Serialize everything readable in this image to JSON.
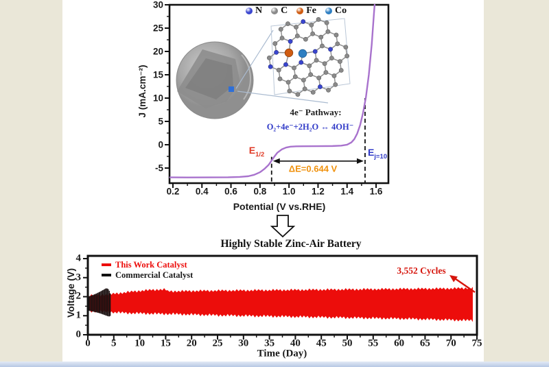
{
  "page": {
    "background": "#eae7d8",
    "panel": "#ffffff",
    "footer_top": "#e3eaf5",
    "footer_bottom": "#b7c8e4",
    "frame_color": "#111111"
  },
  "top_chart": {
    "type": "line",
    "xlabel": "Potential (V vs.RHE)",
    "ylabel": "J (mA.cm⁻²)",
    "xlim": [
      0.1765,
      1.685
    ],
    "ylim": [
      -8.24,
      30
    ],
    "x_ticks": {
      "values": [
        0.2,
        0.4,
        0.6,
        0.8,
        1.0,
        1.2,
        1.4,
        1.6
      ],
      "labels": [
        "0.2",
        "0.4",
        "0.6",
        "0.8",
        "1.0",
        "1.2",
        "1.4",
        "1.6"
      ]
    },
    "y_ticks": {
      "values": [
        30,
        25,
        20,
        15,
        10,
        5,
        0,
        -5
      ],
      "labels": [
        "30",
        "25",
        "20",
        "15",
        "10",
        "5",
        "0",
        "-5"
      ]
    },
    "curve_color": "#a872cd",
    "curve": [
      [
        0.18,
        -7.0
      ],
      [
        0.3,
        -7.02
      ],
      [
        0.45,
        -7.0
      ],
      [
        0.58,
        -6.98
      ],
      [
        0.66,
        -6.9
      ],
      [
        0.72,
        -6.75
      ],
      [
        0.76,
        -6.45
      ],
      [
        0.8,
        -5.9
      ],
      [
        0.83,
        -5.2
      ],
      [
        0.86,
        -4.3
      ],
      [
        0.88,
        -3.4
      ],
      [
        0.9,
        -2.5
      ],
      [
        0.92,
        -1.7
      ],
      [
        0.95,
        -1.0
      ],
      [
        0.98,
        -0.6
      ],
      [
        1.01,
        -0.42
      ],
      [
        1.05,
        -0.35
      ],
      [
        1.1,
        -0.32
      ],
      [
        1.2,
        -0.3
      ],
      [
        1.3,
        -0.28
      ],
      [
        1.36,
        -0.2
      ],
      [
        1.4,
        0.0
      ],
      [
        1.43,
        0.5
      ],
      [
        1.45,
        1.2
      ],
      [
        1.47,
        2.4
      ],
      [
        1.49,
        4.2
      ],
      [
        1.51,
        6.8
      ],
      [
        1.53,
        10.2
      ],
      [
        1.55,
        15.0
      ],
      [
        1.57,
        21.5
      ],
      [
        1.585,
        28.0
      ],
      [
        1.59,
        30.0
      ]
    ],
    "annotations": {
      "e_half": {
        "text": "E",
        "sub": "1/2",
        "x": 0.88,
        "dash_top_j": -2.6,
        "color": "#e03a26"
      },
      "e_j10": {
        "text": "E",
        "sub": "j=10",
        "x": 1.524,
        "dash_top_j": 10,
        "color": "#2f39c7"
      },
      "delta_e": {
        "text": "ΔE=0.644 V",
        "arrow_j": -3.5,
        "color": "#f0920e"
      },
      "pathway_title": "4e⁻ Pathway:",
      "pathway_eq": "O₂+4e⁻+2H₂O ↔ 4OH⁻",
      "eq_color": "#2f39c7"
    },
    "atoms": [
      {
        "label": "N",
        "color": "#3a46cf"
      },
      {
        "label": "C",
        "color": "#8a8a8a"
      },
      {
        "label": "Fe",
        "color": "#cf5c12"
      },
      {
        "label": "Co",
        "color": "#2e7fc2"
      }
    ]
  },
  "middle": {
    "title": "Highly Stable Zinc-Air Battery"
  },
  "bottom_chart": {
    "type": "cycling-band",
    "xlabel": "Time (Day)",
    "ylabel": "Voltage (V)",
    "xlim": [
      0,
      75
    ],
    "ylim": [
      0,
      4.144
    ],
    "x_ticks": {
      "values": [
        0,
        5,
        10,
        15,
        20,
        25,
        30,
        35,
        40,
        45,
        50,
        55,
        60,
        65,
        70,
        75
      ],
      "labels": [
        "0",
        "5",
        "10",
        "15",
        "20",
        "25",
        "30",
        "35",
        "40",
        "45",
        "50",
        "55",
        "60",
        "65",
        "70",
        "75"
      ]
    },
    "y_ticks": {
      "values": [
        0,
        1,
        2,
        3,
        4
      ],
      "labels": [
        "0",
        "1",
        "2",
        "3",
        "4"
      ]
    },
    "series": [
      {
        "name": "This Work Catalyst",
        "color": "#ec0d0b",
        "days": [
          0,
          2,
          5,
          8,
          11,
          14,
          15,
          15.4,
          18,
          22,
          26,
          30,
          34,
          38,
          42,
          46,
          50,
          54,
          58,
          62,
          66,
          70,
          73,
          74.3
        ],
        "v_top": [
          2.05,
          2.08,
          2.15,
          2.25,
          2.33,
          2.38,
          2.38,
          2.28,
          2.29,
          2.31,
          2.32,
          2.33,
          2.34,
          2.35,
          2.36,
          2.37,
          2.38,
          2.39,
          2.4,
          2.41,
          2.42,
          2.43,
          2.45,
          2.45
        ],
        "v_bottom": [
          1.25,
          1.22,
          1.18,
          1.14,
          1.12,
          1.1,
          1.1,
          1.1,
          1.08,
          1.05,
          1.02,
          1.0,
          0.98,
          0.96,
          0.94,
          0.92,
          0.9,
          0.88,
          0.86,
          0.84,
          0.81,
          0.78,
          0.76,
          0.75
        ]
      },
      {
        "name": "Commercial Catalyst",
        "color": "#1b1111",
        "days": [
          0,
          0.8,
          1.6,
          2.4,
          3.0,
          3.5,
          3.9,
          4.2,
          4.45
        ],
        "v_top": [
          2.0,
          2.07,
          2.16,
          2.27,
          2.36,
          2.44,
          2.42,
          2.28,
          2.05
        ],
        "v_bottom": [
          1.27,
          1.23,
          1.18,
          1.12,
          1.06,
          1.01,
          0.97,
          0.96,
          1.02
        ]
      }
    ],
    "annotation": {
      "text": "3,552 Cycles",
      "color": "#d6150c"
    }
  }
}
